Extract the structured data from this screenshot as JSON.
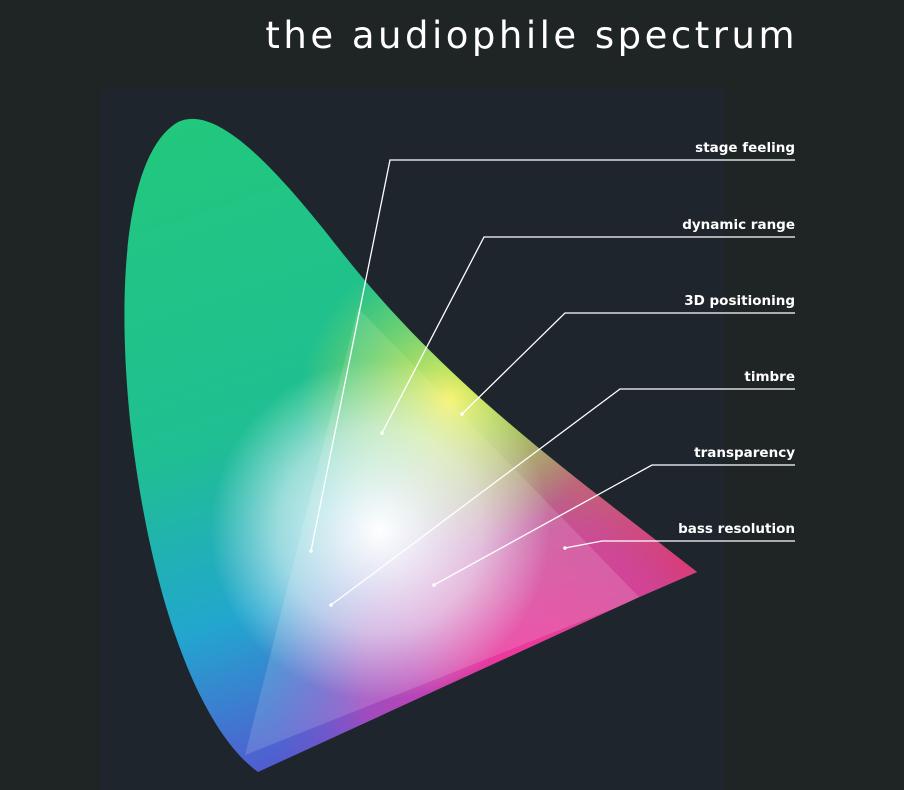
{
  "title": "the audiophile spectrum",
  "labels": [
    "stage feeling",
    "dynamic range",
    "3D positioning",
    "timbre",
    "transparency",
    "bass resolution"
  ],
  "colors": {
    "background": "#1f2424",
    "panel": "#1f252c",
    "green": "#22c97a",
    "blue": "#2a6fd6",
    "red": "#ff3b4f",
    "magenta": "#ff2d9a",
    "text": "#ffffff"
  }
}
